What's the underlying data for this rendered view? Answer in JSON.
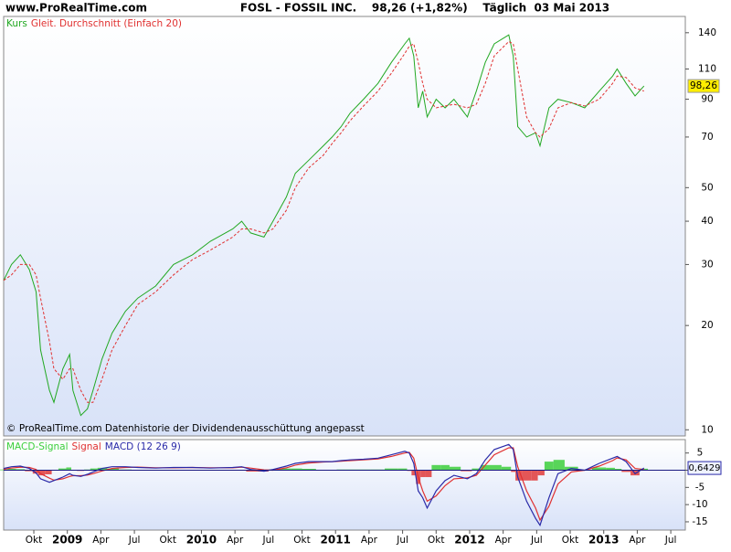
{
  "header": "www.ProRealTime.com",
  "chart_data": [
    {
      "type": "line",
      "title": "FOSL - FOSSIL INC.    98,26 (+1,82%)    Täglich  03 Mai 2013",
      "note": "© ProRealTime.com  Datenhistorie der Dividendenausschüttung angepasst",
      "log_scale": true,
      "xlim": [
        6.3,
        67.3
      ],
      "ylim": [
        9.6,
        156
      ],
      "yticks": [
        10,
        20,
        30,
        40,
        50,
        70,
        90,
        110,
        140
      ],
      "x": [
        6.3,
        7.0,
        7.8,
        8.6,
        9.2,
        9.6,
        10.4,
        10.8,
        11.6,
        12.2,
        12.5,
        13.2,
        13.8,
        14.3,
        15.1,
        16.0,
        17.2,
        18.3,
        19.9,
        21.5,
        23.2,
        24.8,
        26.8,
        27.6,
        28.4,
        29.6,
        30.4,
        31.6,
        32.4,
        33.6,
        34.9,
        35.7,
        36.5,
        37.3,
        38.5,
        39.8,
        41.0,
        42.2,
        42.6,
        43.0,
        43.4,
        43.8,
        44.2,
        45.0,
        45.8,
        46.6,
        47.8,
        48.6,
        49.4,
        50.2,
        51.5,
        51.9,
        52.3,
        53.1,
        53.9,
        54.3,
        55.1,
        55.9,
        57.1,
        58.3,
        59.6,
        60.8,
        61.2,
        62.0,
        62.8,
        63.6
      ],
      "series": [
        {
          "name": "Kurs",
          "color": "#22a822",
          "last_value_label": "98,26",
          "values": [
            27,
            30,
            32,
            29,
            25,
            17,
            13,
            12,
            15,
            16.5,
            13,
            11,
            11.5,
            13,
            16,
            19,
            22,
            24,
            26,
            30,
            32,
            35,
            38,
            40,
            37,
            36,
            40,
            47,
            55,
            60,
            66,
            70,
            75,
            82,
            90,
            100,
            115,
            130,
            135,
            120,
            85,
            95,
            80,
            90,
            85,
            90,
            80,
            95,
            115,
            130,
            138,
            120,
            75,
            70,
            72,
            66,
            85,
            90,
            88,
            85,
            95,
            105,
            110,
            100,
            92,
            98.26
          ]
        },
        {
          "name": "Gleit. Durchschnitt (Einfach 20)",
          "color": "#e03030",
          "dashed": true,
          "values": [
            27,
            28,
            30,
            30,
            28,
            24,
            18,
            15,
            14,
            15,
            15,
            13,
            12,
            12,
            14,
            17,
            20,
            23,
            25,
            28,
            31,
            33,
            36,
            38,
            38,
            37,
            38,
            43,
            50,
            57,
            62,
            67,
            72,
            78,
            86,
            95,
            107,
            122,
            128,
            130,
            115,
            100,
            90,
            85,
            86,
            87,
            85,
            87,
            100,
            120,
            132,
            130,
            110,
            80,
            72,
            70,
            74,
            85,
            88,
            86,
            90,
            100,
            105,
            104,
            97,
            95
          ]
        }
      ]
    },
    {
      "type": "macd",
      "xlim": [
        6.3,
        67.3
      ],
      "ylim": [
        -17.4,
        8.9
      ],
      "yticks": [
        5,
        0,
        -5,
        -10,
        -15
      ],
      "xticks": [
        {
          "value": 9,
          "label": "Okt"
        },
        {
          "value": 12,
          "label": "2009"
        },
        {
          "value": 15,
          "label": "Apr"
        },
        {
          "value": 18,
          "label": "Jul"
        },
        {
          "value": 21,
          "label": "Okt"
        },
        {
          "value": 24,
          "label": "2010"
        },
        {
          "value": 27,
          "label": "Apr"
        },
        {
          "value": 30,
          "label": "Jul"
        },
        {
          "value": 33,
          "label": "Okt"
        },
        {
          "value": 36,
          "label": "2011"
        },
        {
          "value": 39,
          "label": "Apr"
        },
        {
          "value": 42,
          "label": "Jul"
        },
        {
          "value": 45,
          "label": "Okt"
        },
        {
          "value": 48,
          "label": "2012"
        },
        {
          "value": 51,
          "label": "Apr"
        },
        {
          "value": 54,
          "label": "Jul"
        },
        {
          "value": 57,
          "label": "Okt"
        },
        {
          "value": 60,
          "label": "2013"
        },
        {
          "value": 63,
          "label": "Apr"
        },
        {
          "value": 66,
          "label": "Jul"
        }
      ],
      "x": [
        6.3,
        7.0,
        7.8,
        8.6,
        9.2,
        9.6,
        10.4,
        10.8,
        11.6,
        12.2,
        12.5,
        13.2,
        13.8,
        14.3,
        15.1,
        16.0,
        17.2,
        18.3,
        19.9,
        21.5,
        23.2,
        24.8,
        26.8,
        27.6,
        28.4,
        29.6,
        30.4,
        31.6,
        32.4,
        33.6,
        34.9,
        35.7,
        36.5,
        37.3,
        38.5,
        39.8,
        41.0,
        42.2,
        42.6,
        43.0,
        43.4,
        43.8,
        44.2,
        45.0,
        45.8,
        46.6,
        47.8,
        48.6,
        49.4,
        50.2,
        51.5,
        51.9,
        52.3,
        53.1,
        53.9,
        54.3,
        55.1,
        55.9,
        57.1,
        58.3,
        59.6,
        60.8,
        61.2,
        62.0,
        62.8,
        63.6
      ],
      "series": [
        {
          "name": "MACD-Signal",
          "color": "#3ccf3c",
          "neg_color": "#e03a3a",
          "kind": "histogram",
          "values": [
            0.2,
            0.4,
            0.3,
            -0.3,
            -1,
            -1.5,
            -1.2,
            -0.1,
            0.5,
            0.8,
            0.1,
            -0.2,
            0.2,
            0.5,
            0.7,
            0.5,
            0.2,
            -0.1,
            -0.1,
            0.1,
            0,
            -0.1,
            0.1,
            0.1,
            -0.4,
            -0.4,
            0.2,
            0.5,
            0.5,
            0.4,
            0.1,
            0,
            0.2,
            0.2,
            0.2,
            0.2,
            0.5,
            0.5,
            -0.2,
            -1.5,
            -4,
            -2,
            -2,
            1.5,
            1.5,
            1,
            -0.3,
            0.5,
            1.5,
            1.5,
            1,
            -0.5,
            -3,
            -3,
            -3,
            -1.5,
            2.5,
            3,
            1,
            0,
            0.8,
            0.7,
            0.4,
            -0.5,
            -1.5,
            0.44
          ]
        },
        {
          "name": "Signal",
          "color": "#e03030",
          "kind": "line",
          "values": [
            0.3,
            0.6,
            0.9,
            0.8,
            0.2,
            -1,
            -2.3,
            -2.9,
            -2.5,
            -1.8,
            -1.6,
            -1.6,
            -1.4,
            -1,
            -0.2,
            0.5,
            0.8,
            0.9,
            0.7,
            0.7,
            0.8,
            0.7,
            0.7,
            0.9,
            0.6,
            0.1,
            0,
            0.7,
            1.5,
            2.1,
            2.4,
            2.5,
            2.6,
            2.8,
            3,
            3.3,
            4,
            5,
            5.2,
            3.5,
            -2,
            -6,
            -9,
            -7.5,
            -4.5,
            -2.5,
            -2.2,
            -1.5,
            1.5,
            4.5,
            6.5,
            6.5,
            1,
            -6,
            -11,
            -14.5,
            -10.5,
            -4,
            -0.5,
            0,
            1.2,
            2.8,
            3.6,
            3,
            0.5,
            0.2
          ]
        },
        {
          "name": "MACD (12 26 9)",
          "color": "#2a2aa8",
          "kind": "line",
          "last_value_label": "0,6429",
          "values": [
            0.5,
            1,
            1.2,
            0.5,
            -0.8,
            -2.5,
            -3.5,
            -3,
            -2,
            -1,
            -1.5,
            -1.8,
            -1.2,
            -0.5,
            0.5,
            1,
            1,
            0.8,
            0.6,
            0.8,
            0.8,
            0.6,
            0.8,
            1,
            0.2,
            -0.3,
            0.2,
            1.2,
            2,
            2.5,
            2.5,
            2.5,
            2.8,
            3,
            3.2,
            3.5,
            4.5,
            5.5,
            5,
            2,
            -6,
            -8,
            -11,
            -6,
            -3,
            -1.5,
            -2.5,
            -1,
            3,
            6,
            7.5,
            6,
            -2,
            -9,
            -14,
            -16,
            -8,
            -1,
            0.5,
            0,
            2,
            3.5,
            4,
            2.5,
            -1,
            0.6429
          ]
        }
      ]
    }
  ]
}
